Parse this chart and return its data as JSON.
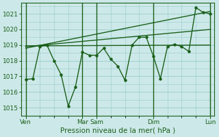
{
  "xlabel": "Pression niveau de la mer( hPa )",
  "bg_color": "#cce8e8",
  "grid_color": "#99cccc",
  "line_color": "#1a5f1a",
  "ylim": [
    1014.5,
    1021.7
  ],
  "yticks": [
    1015,
    1016,
    1017,
    1018,
    1019,
    1020,
    1021
  ],
  "xtick_labels": [
    "Ven",
    "Mar",
    "Sam",
    "Dim",
    "Lun"
  ],
  "xtick_positions": [
    0,
    4,
    5,
    9,
    13
  ],
  "major_vlines": [
    0,
    4,
    5,
    9,
    13
  ],
  "xlim": [
    -0.3,
    13.3
  ],
  "series1_x": [
    0,
    0.5,
    1,
    1.5,
    2,
    2.5,
    3,
    3.5,
    4,
    4.5,
    5,
    5.5,
    6,
    6.5,
    7,
    7.5,
    8,
    8.5,
    9,
    9.5,
    10,
    10.5,
    11,
    11.5,
    12,
    12.5,
    13
  ],
  "series1_y": [
    1016.8,
    1016.85,
    1018.9,
    1019.0,
    1018.0,
    1017.1,
    1015.1,
    1016.3,
    1018.55,
    1018.35,
    1018.35,
    1018.8,
    1018.1,
    1017.65,
    1016.75,
    1019.0,
    1019.5,
    1019.5,
    1018.3,
    1016.85,
    1018.9,
    1019.05,
    1018.9,
    1018.6,
    1021.4,
    1021.1,
    1021.0
  ],
  "trend1_x": [
    0,
    13
  ],
  "trend1_y": [
    1018.95,
    1019.0
  ],
  "trend2_x": [
    0,
    13
  ],
  "trend2_y": [
    1018.8,
    1021.15
  ],
  "trend3_x": [
    0,
    13
  ],
  "trend3_y": [
    1018.9,
    1020.0
  ]
}
